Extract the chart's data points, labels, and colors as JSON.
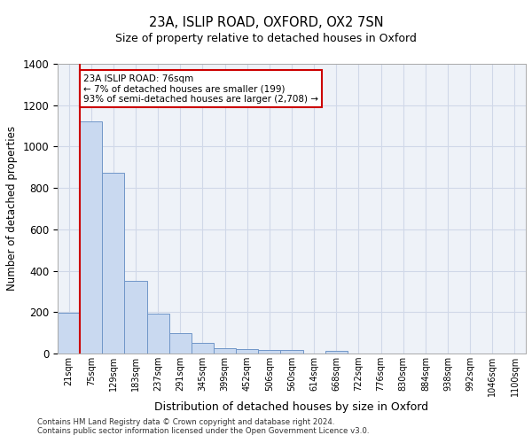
{
  "title1": "23A, ISLIP ROAD, OXFORD, OX2 7SN",
  "title2": "Size of property relative to detached houses in Oxford",
  "xlabel": "Distribution of detached houses by size in Oxford",
  "ylabel": "Number of detached properties",
  "bar_labels": [
    "21sqm",
    "75sqm",
    "129sqm",
    "183sqm",
    "237sqm",
    "291sqm",
    "345sqm",
    "399sqm",
    "452sqm",
    "506sqm",
    "560sqm",
    "614sqm",
    "668sqm",
    "722sqm",
    "776sqm",
    "830sqm",
    "884sqm",
    "938sqm",
    "992sqm",
    "1046sqm",
    "1100sqm"
  ],
  "bar_values": [
    195,
    1120,
    875,
    350,
    192,
    100,
    53,
    25,
    22,
    17,
    17,
    0,
    14,
    0,
    0,
    0,
    0,
    0,
    0,
    0,
    0
  ],
  "bar_color": "#c9d9f0",
  "bar_edge_color": "#7096c8",
  "vline_x": 1,
  "vline_color": "#cc0000",
  "ylim": [
    0,
    1400
  ],
  "yticks": [
    0,
    200,
    400,
    600,
    800,
    1000,
    1200,
    1400
  ],
  "annotation_text": "23A ISLIP ROAD: 76sqm\n← 7% of detached houses are smaller (199)\n93% of semi-detached houses are larger (2,708) →",
  "annotation_box_color": "#ffffff",
  "annotation_box_edgecolor": "#cc0000",
  "footer1": "Contains HM Land Registry data © Crown copyright and database right 2024.",
  "footer2": "Contains public sector information licensed under the Open Government Licence v3.0.",
  "grid_color": "#d0d8e8",
  "bg_color": "#eef2f8"
}
